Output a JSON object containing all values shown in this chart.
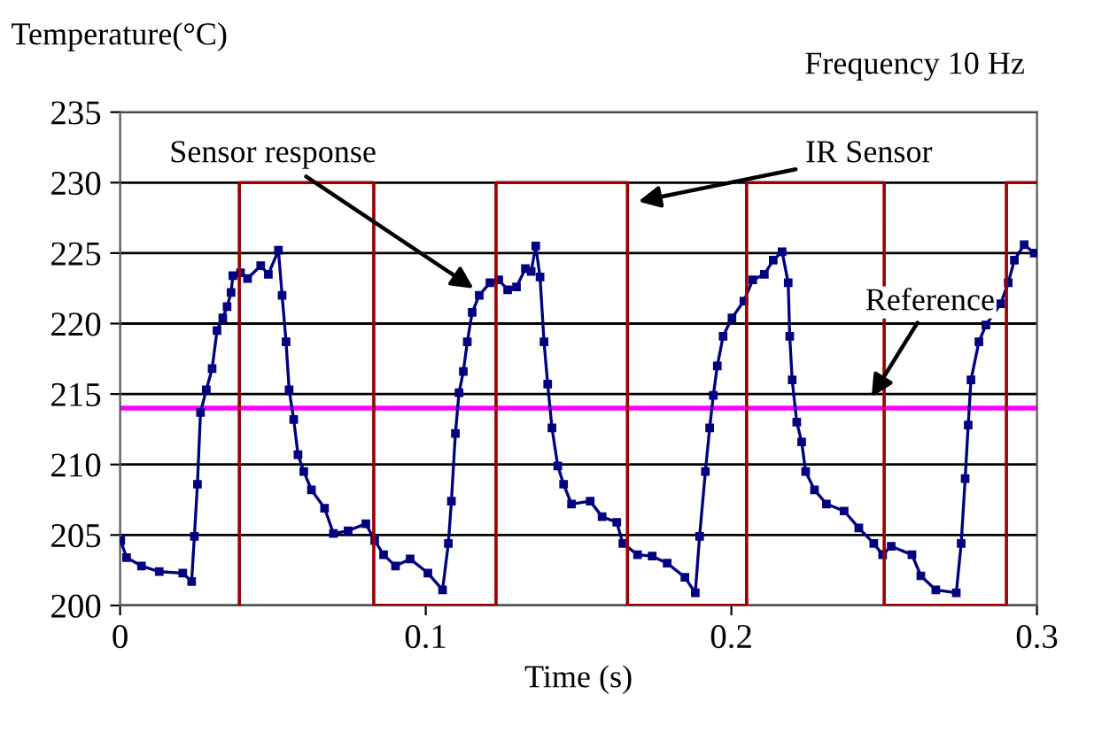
{
  "chart_data": {
    "type": "line",
    "ylabel": "Temperature(°C)",
    "xlabel": "Time (s)",
    "annotations": [
      "Frequency 10 Hz"
    ],
    "xlim": [
      0,
      0.3
    ],
    "ylim": [
      200,
      235
    ],
    "xticks": [
      0,
      0.1,
      0.2,
      0.3
    ],
    "yticks": [
      200,
      205,
      210,
      215,
      220,
      225,
      230,
      235
    ],
    "grid": "y",
    "legend": false,
    "series": [
      {
        "name": "Sensor response",
        "color": "#000080",
        "marker": "square",
        "x": [
          0.0002,
          0.0021,
          0.007,
          0.0128,
          0.0205,
          0.0234,
          0.0243,
          0.0253,
          0.0263,
          0.0282,
          0.0301,
          0.0317,
          0.0336,
          0.035,
          0.0363,
          0.0369,
          0.0394,
          0.0417,
          0.046,
          0.0485,
          0.0518,
          0.053,
          0.0543,
          0.0553,
          0.0568,
          0.0582,
          0.0601,
          0.0626,
          0.0669,
          0.0698,
          0.0746,
          0.0804,
          0.0833,
          0.0862,
          0.0901,
          0.0949,
          0.1007,
          0.1055,
          0.1074,
          0.1084,
          0.1097,
          0.1109,
          0.1123,
          0.1136,
          0.1152,
          0.1175,
          0.121,
          0.1239,
          0.1268,
          0.1297,
          0.1326,
          0.1345,
          0.136,
          0.1374,
          0.1387,
          0.1399,
          0.1413,
          0.1432,
          0.1451,
          0.1477,
          0.1538,
          0.1577,
          0.1625,
          0.1645,
          0.1693,
          0.1741,
          0.179,
          0.1848,
          0.1882,
          0.1896,
          0.1915,
          0.1929,
          0.1941,
          0.1954,
          0.1973,
          0.2002,
          0.2041,
          0.207,
          0.2108,
          0.2137,
          0.2166,
          0.2186,
          0.2191,
          0.2199,
          0.2214,
          0.223,
          0.2243,
          0.2272,
          0.2311,
          0.2369,
          0.2417,
          0.2466,
          0.2495,
          0.2523,
          0.2591,
          0.262,
          0.2669,
          0.2736,
          0.2752,
          0.2765,
          0.2775,
          0.2784,
          0.281,
          0.2833,
          0.2881,
          0.2906,
          0.2926,
          0.2958,
          0.2991
        ],
        "values": [
          204.6,
          203.4,
          202.8,
          202.4,
          202.3,
          201.7,
          204.9,
          208.6,
          213.7,
          215.3,
          216.8,
          219.5,
          220.4,
          221.2,
          222.2,
          223.4,
          223.6,
          223.2,
          224.1,
          223.5,
          225.2,
          222.0,
          218.7,
          215.3,
          213.2,
          210.7,
          209.5,
          208.2,
          206.9,
          205.1,
          205.3,
          205.8,
          204.6,
          203.6,
          202.8,
          203.3,
          202.3,
          201.1,
          204.4,
          207.4,
          212.2,
          215.1,
          216.6,
          218.7,
          220.8,
          222.0,
          222.9,
          223.1,
          222.4,
          222.6,
          223.9,
          223.7,
          225.5,
          223.3,
          218.7,
          215.7,
          212.6,
          209.9,
          208.6,
          207.2,
          207.4,
          206.3,
          205.9,
          204.4,
          203.6,
          203.5,
          203.0,
          202.0,
          200.9,
          204.9,
          209.5,
          212.6,
          214.9,
          217.0,
          219.1,
          220.4,
          221.6,
          223.1,
          223.5,
          224.5,
          225.1,
          222.9,
          219.1,
          216.0,
          213.0,
          211.6,
          209.5,
          208.2,
          207.2,
          206.7,
          205.5,
          204.4,
          203.6,
          204.2,
          203.6,
          202.1,
          201.1,
          200.9,
          204.4,
          209.0,
          212.8,
          216.0,
          218.7,
          219.9,
          221.4,
          222.9,
          224.5,
          225.6,
          225.0
        ]
      },
      {
        "name": "IR Sensor",
        "color": "#990000",
        "marker": "none",
        "x": [
          0.039,
          0.039,
          0.083,
          0.083,
          0.123,
          0.123,
          0.166,
          0.166,
          0.205,
          0.205,
          0.25,
          0.25,
          0.29,
          0.29,
          0.3
        ],
        "values": [
          200,
          230,
          230,
          200,
          200,
          230,
          230,
          200,
          200,
          230,
          230,
          200,
          200,
          230,
          230
        ]
      }
    ],
    "ref_lines": [
      {
        "axis": "y",
        "value": 214,
        "label": "Reference",
        "color": "#ff00ff",
        "line_style": "solid"
      }
    ]
  }
}
